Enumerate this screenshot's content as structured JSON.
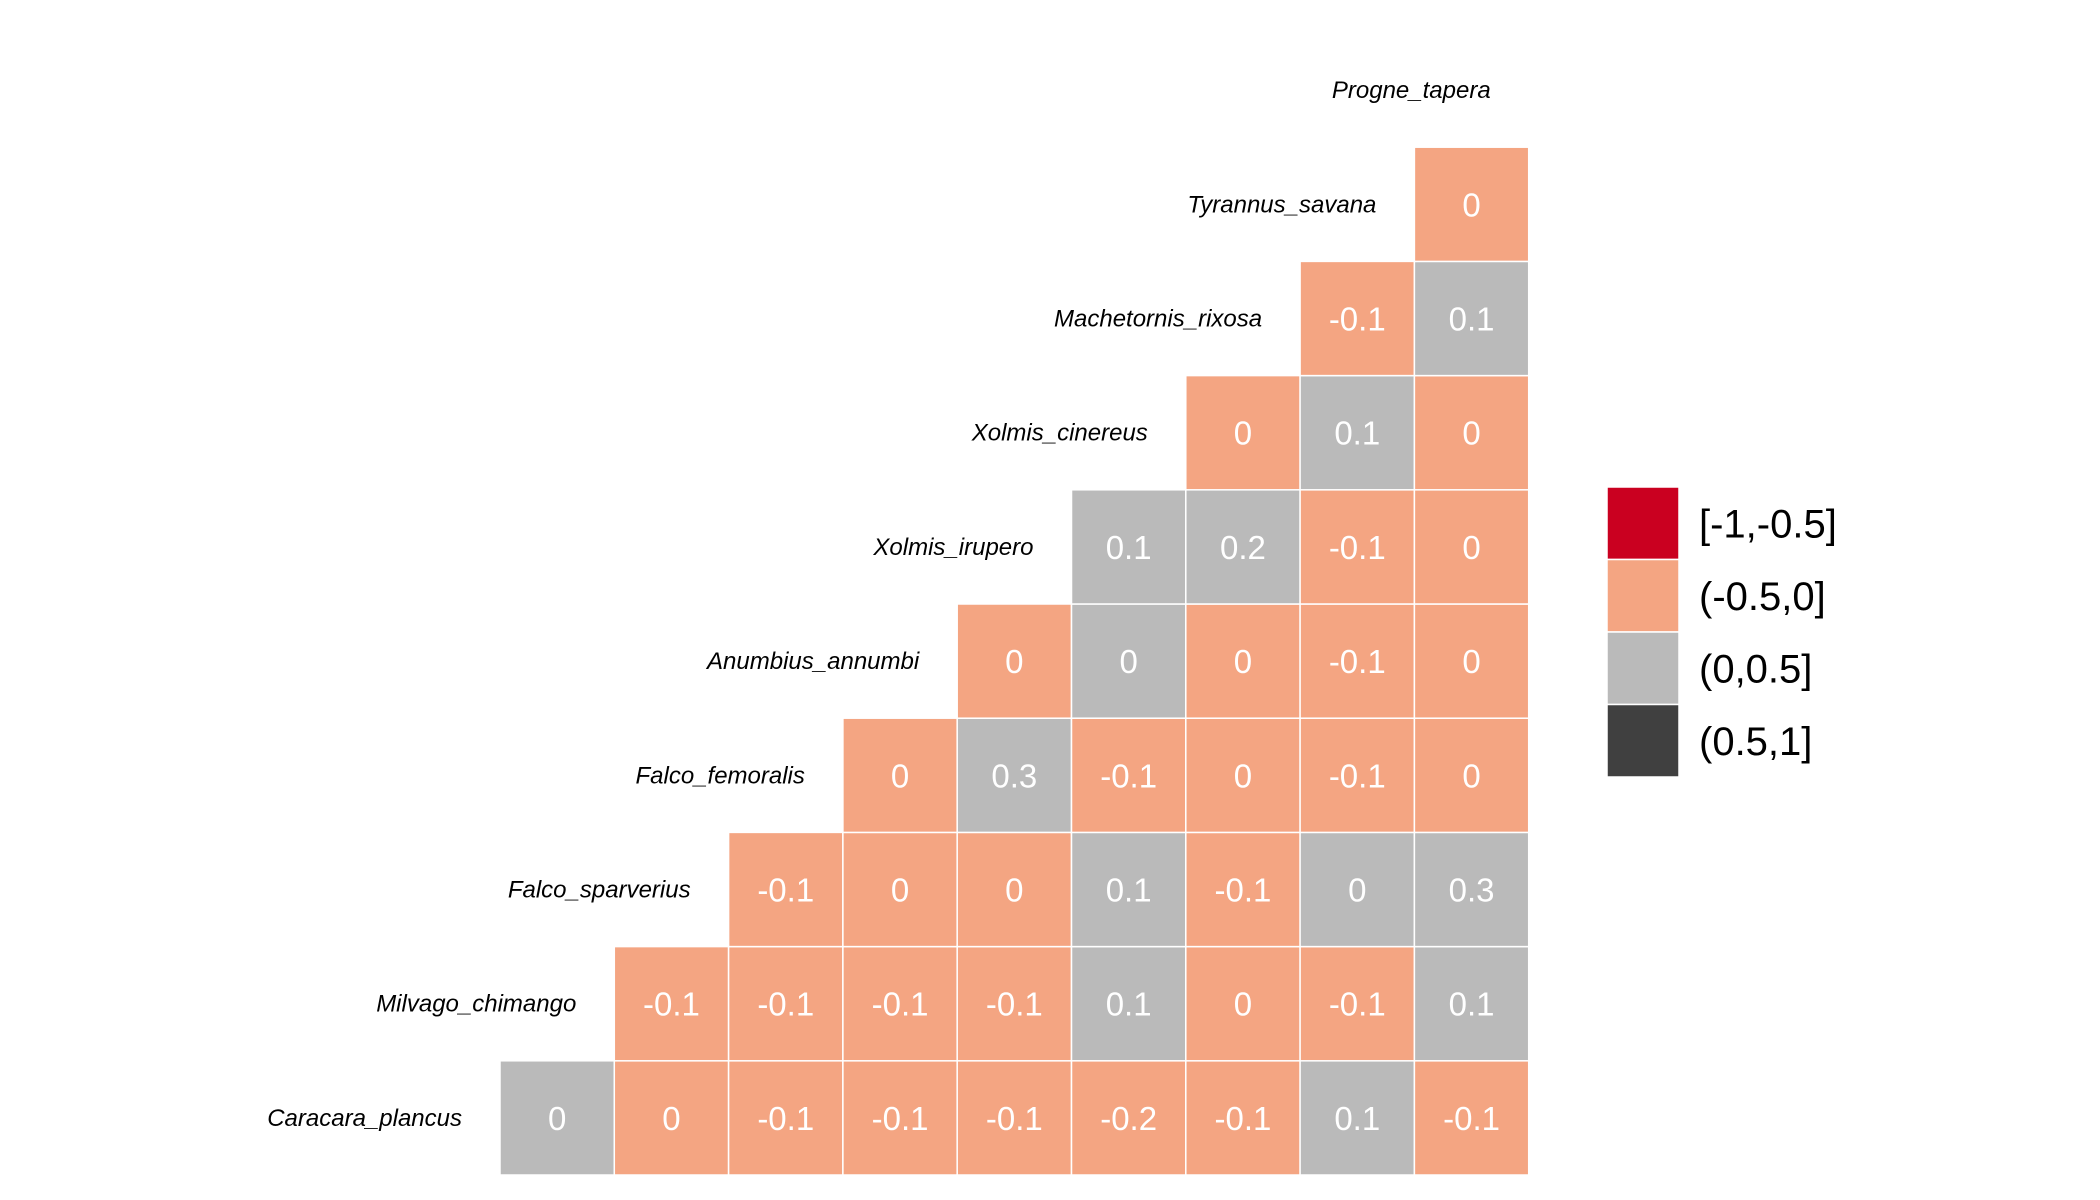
{
  "chart_data": {
    "type": "heatmap",
    "title": "",
    "species": [
      "Caracara_plancus",
      "Milvago_chimango",
      "Falco_sparverius",
      "Falco_femoralis",
      "Anumbius_annumbi",
      "Xolmis_irupero",
      "Xolmis_cinereus",
      "Machetornis_rixosa",
      "Tyrannus_savana",
      "Progne_tapera"
    ],
    "rows": [
      {
        "species": "Caracara_plancus",
        "values": [
          "0",
          "0",
          "-0.1",
          "-0.1",
          "-0.1",
          "-0.2",
          "-0.1",
          "0.1",
          "-0.1"
        ]
      },
      {
        "species": "Milvago_chimango",
        "values": [
          "-0.1",
          "-0.1",
          "-0.1",
          "-0.1",
          "0.1",
          "0",
          "-0.1",
          "0.1"
        ]
      },
      {
        "species": "Falco_sparverius",
        "values": [
          "-0.1",
          "0",
          "0",
          "0.1",
          "-0.1",
          "0",
          "0.3"
        ]
      },
      {
        "species": "Falco_femoralis",
        "values": [
          "0",
          "0.3",
          "-0.1",
          "0",
          "-0.1",
          "0"
        ]
      },
      {
        "species": "Anumbius_annumbi",
        "values": [
          "0",
          "0",
          "0",
          "-0.1",
          "0"
        ]
      },
      {
        "species": "Xolmis_irupero",
        "values": [
          "0.1",
          "0.2",
          "-0.1",
          "0"
        ]
      },
      {
        "species": "Xolmis_cinereus",
        "values": [
          "0",
          "0.1",
          "0"
        ]
      },
      {
        "species": "Machetornis_rixosa",
        "values": [
          "-0.1",
          "0.1"
        ]
      },
      {
        "species": "Tyrannus_savana",
        "values": [
          "0"
        ]
      },
      {
        "species": "Progne_tapera",
        "values": []
      }
    ],
    "category_grid": [
      [
        2,
        1,
        1,
        1,
        1,
        1,
        1,
        2,
        1
      ],
      [
        1,
        1,
        1,
        1,
        2,
        1,
        1,
        2
      ],
      [
        1,
        1,
        1,
        2,
        1,
        2,
        2
      ],
      [
        1,
        2,
        1,
        1,
        1,
        1
      ],
      [
        1,
        2,
        1,
        1,
        1
      ],
      [
        2,
        2,
        1,
        1
      ],
      [
        1,
        2,
        1
      ],
      [
        1,
        2
      ],
      [
        1
      ],
      []
    ],
    "legend": [
      {
        "label": "[-1,-0.5]",
        "color": "#ca0020"
      },
      {
        "label": "(-0.5,0]",
        "color": "#f4a582"
      },
      {
        "label": "(0,0.5]",
        "color": "#bababa"
      },
      {
        "label": "(0.5,1]",
        "color": "#404040"
      }
    ]
  }
}
